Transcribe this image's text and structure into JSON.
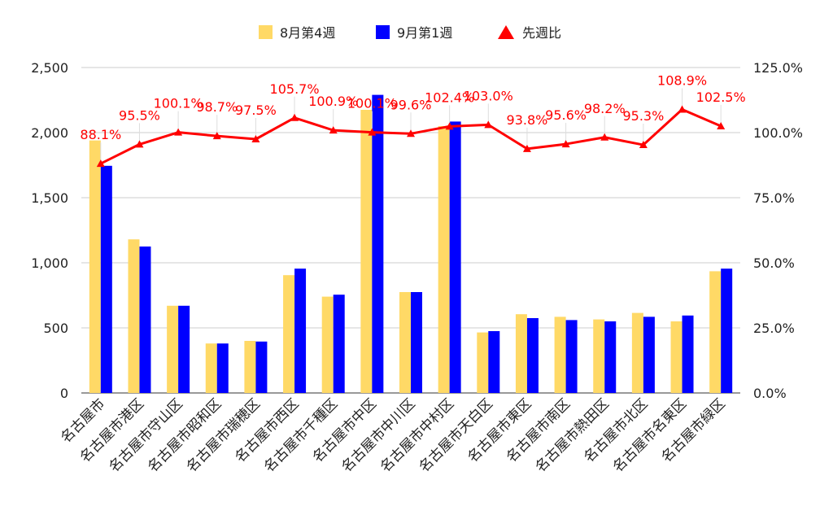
{
  "chart_data": {
    "type": "bar",
    "categories": [
      "名古屋市",
      "名古屋市港区",
      "名古屋市守山区",
      "名古屋市昭和区",
      "名古屋市瑞穂区",
      "名古屋市西区",
      "名古屋市千種区",
      "名古屋市中区",
      "名古屋市中川区",
      "名古屋市中村区",
      "名古屋市天白区",
      "名古屋市東区",
      "名古屋市南区",
      "名古屋市熱田区",
      "名古屋市北区",
      "名古屋市名東区",
      "名古屋市緑区"
    ],
    "series": [
      {
        "name": "8月第4週",
        "kind": "bar",
        "axis": "left",
        "color": "#ffd966",
        "values": [
          1940,
          1180,
          670,
          380,
          400,
          905,
          740,
          2175,
          775,
          2050,
          465,
          605,
          585,
          565,
          615,
          550,
          935
        ]
      },
      {
        "name": "9月第1週",
        "kind": "bar",
        "axis": "left",
        "color": "#0000ff",
        "values": [
          1745,
          1125,
          670,
          380,
          395,
          955,
          755,
          2290,
          775,
          2085,
          475,
          575,
          560,
          550,
          585,
          595,
          955
        ]
      },
      {
        "name": "先週比",
        "kind": "line",
        "axis": "right",
        "color": "#ff0000",
        "values": [
          88.1,
          95.5,
          100.1,
          98.7,
          97.5,
          105.7,
          100.9,
          100.1,
          99.6,
          102.4,
          103.0,
          93.8,
          95.6,
          98.2,
          95.3,
          108.9,
          102.5
        ],
        "labels": [
          "88.1%",
          "95.5%",
          "100.1%",
          "98.7%",
          "97.5%",
          "105.7%",
          "100.9%",
          "100.1%",
          "99.6%",
          "102.4%",
          "103.0%",
          "93.8%",
          "95.6%",
          "98.2%",
          "95.3%",
          "108.9%",
          "102.5%"
        ]
      }
    ],
    "y_left": {
      "min": 0,
      "max": 2500,
      "ticks": [
        0,
        500,
        1000,
        1500,
        2000,
        2500
      ],
      "tick_labels": [
        "0",
        "500",
        "1,000",
        "1,500",
        "2,000",
        "2,500"
      ]
    },
    "y_right": {
      "min": 0,
      "max": 125,
      "ticks": [
        0,
        25,
        50,
        75,
        100,
        125
      ],
      "tick_labels": [
        "0.0%",
        "25.0%",
        "50.0%",
        "75.0%",
        "100.0%",
        "125.0%"
      ]
    },
    "grid": true,
    "legend_position": "top-center"
  }
}
